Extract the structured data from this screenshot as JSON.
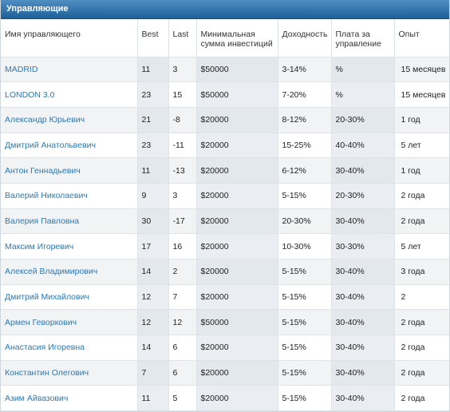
{
  "panel": {
    "title": "Управляющие"
  },
  "columns": {
    "name": "Имя управляющего",
    "best": "Best",
    "last": "Last",
    "min_investment": "Минимальная сумма инвестиций",
    "yield": "Доходность",
    "fee": "Плата за управление",
    "experience": "Опыт"
  },
  "rows": [
    {
      "name": "MADRID",
      "best": "11",
      "last": "3",
      "min_investment": "$50000",
      "yield": "3-14%",
      "fee": "%",
      "experience": "15 месяцев"
    },
    {
      "name": "LONDON 3.0",
      "best": "23",
      "last": "15",
      "min_investment": "$50000",
      "yield": "7-20%",
      "fee": "%",
      "experience": "15 месяцев"
    },
    {
      "name": "Александр Юрьевич",
      "best": "21",
      "last": "-8",
      "min_investment": "$20000",
      "yield": "8-12%",
      "fee": "20-30%",
      "experience": "1 год"
    },
    {
      "name": "Дмитрий Анатольвевич",
      "best": "23",
      "last": "-11",
      "min_investment": "$20000",
      "yield": "15-25%",
      "fee": "40-40%",
      "experience": "5 лет"
    },
    {
      "name": "Антон Геннадьевич",
      "best": "11",
      "last": "-13",
      "min_investment": "$20000",
      "yield": "6-12%",
      "fee": "30-40%",
      "experience": "1 год"
    },
    {
      "name": "Валерий Николаевич",
      "best": "9",
      "last": "3",
      "min_investment": "$20000",
      "yield": "5-15%",
      "fee": "20-30%",
      "experience": "2 года"
    },
    {
      "name": "Валерия Павловна",
      "best": "30",
      "last": "-17",
      "min_investment": "$20000",
      "yield": "20-30%",
      "fee": "30-40%",
      "experience": "2 года"
    },
    {
      "name": "Максим Игоревич",
      "best": "17",
      "last": "16",
      "min_investment": "$20000",
      "yield": "10-30%",
      "fee": "30-30%",
      "experience": "5 лет"
    },
    {
      "name": "Алексей Владимирович",
      "best": "14",
      "last": "2",
      "min_investment": "$20000",
      "yield": "5-15%",
      "fee": "30-40%",
      "experience": "3 года"
    },
    {
      "name": "Дмитрий Михайлович",
      "best": "12",
      "last": "7",
      "min_investment": "$20000",
      "yield": "5-15%",
      "fee": "30-40%",
      "experience": "2"
    },
    {
      "name": "Армен Геворкович",
      "best": "12",
      "last": "12",
      "min_investment": "$50000",
      "yield": "5-15%",
      "fee": "30-40%",
      "experience": "2 года"
    },
    {
      "name": "Анастасия Игоревна",
      "best": "14",
      "last": "6",
      "min_investment": "$20000",
      "yield": "5-15%",
      "fee": "30-40%",
      "experience": "2 года"
    },
    {
      "name": "Константин Олегович",
      "best": "7",
      "last": "6",
      "min_investment": "$20000",
      "yield": "5-15%",
      "fee": "30-40%",
      "experience": "2 года"
    },
    {
      "name": "Азим Айвазович",
      "best": "11",
      "last": "5",
      "min_investment": "$20000",
      "yield": "5-15%",
      "fee": "30-40%",
      "experience": "2 года"
    }
  ],
  "colors": {
    "title_bar": "#1f5f99",
    "link": "#2a7ab8"
  }
}
